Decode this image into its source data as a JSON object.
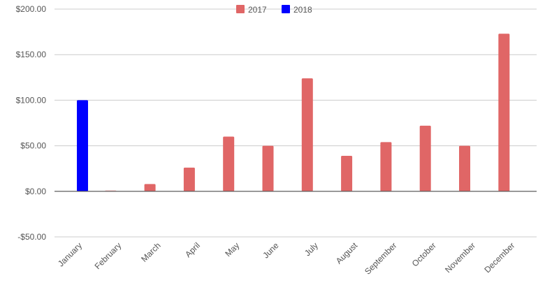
{
  "chart_data": {
    "type": "bar",
    "title": "",
    "xlabel": "",
    "ylabel": "",
    "ylim": [
      -50,
      200
    ],
    "yticks": [
      -50,
      0,
      50,
      100,
      150,
      200
    ],
    "ytick_labels": [
      "-$50.00",
      "$0.00",
      "$50.00",
      "$100.00",
      "$150.00",
      "$200.00"
    ],
    "grid": true,
    "legend_position": "top",
    "categories": [
      "January",
      "February",
      "March",
      "April",
      "May",
      "June",
      "July",
      "August",
      "September",
      "October",
      "November",
      "December"
    ],
    "series": [
      {
        "name": "2017",
        "color": "#e06666",
        "values": [
          null,
          1,
          8,
          26,
          60,
          50,
          124,
          39,
          54,
          72,
          50,
          173
        ]
      },
      {
        "name": "2018",
        "color": "#0000ff",
        "values": [
          100,
          null,
          null,
          null,
          null,
          null,
          null,
          null,
          null,
          null,
          null,
          null
        ]
      }
    ]
  }
}
